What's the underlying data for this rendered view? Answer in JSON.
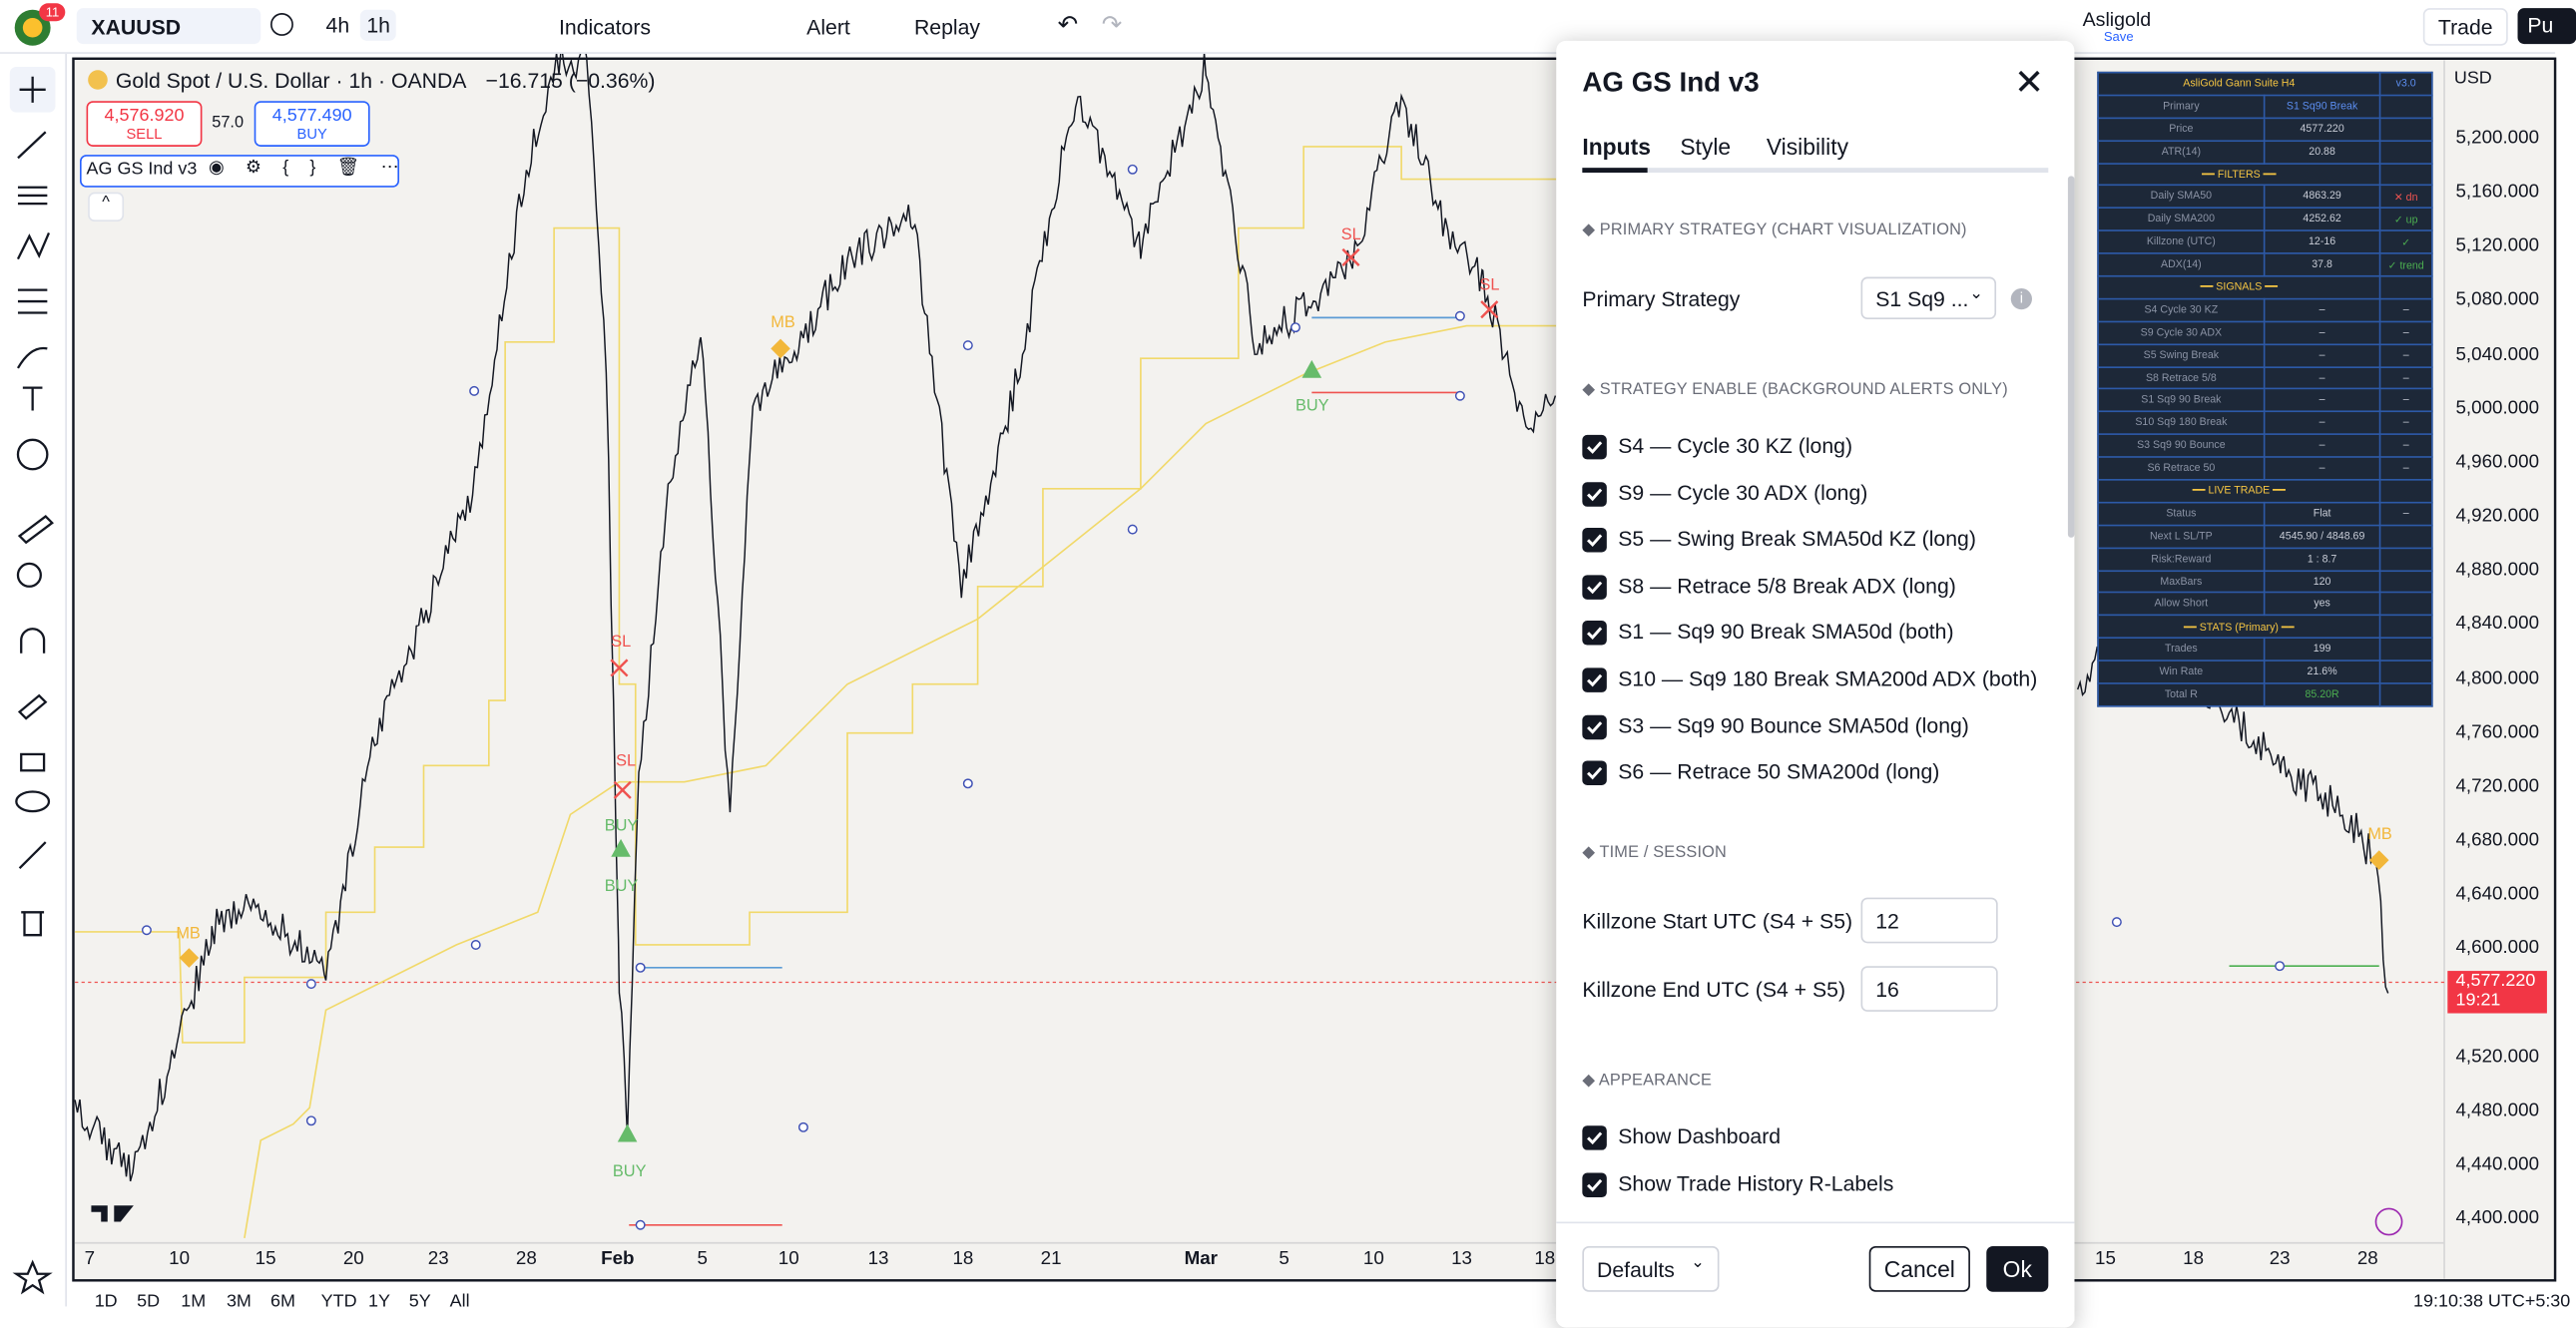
{
  "toolbar": {
    "notifications": "11",
    "symbol": "XAUUSD",
    "intervals": [
      "4h",
      "1h"
    ],
    "indicators": "Indicators",
    "alert": "Alert",
    "replay": "Replay",
    "account": "Asligold",
    "save": "Save",
    "trade": "Trade",
    "publish": "Pu"
  },
  "legend": {
    "title": "Gold Spot / U.S. Dollar · 1h · OANDA",
    "change": "−16.715 (−0.36%)",
    "sell_price": "4,576.920",
    "sell": "SELL",
    "spread": "57.0",
    "buy_price": "4,577.490",
    "buy": "BUY",
    "indicator": "AG GS Ind v3"
  },
  "chart_labels": [
    "MB",
    "MB",
    "SL",
    "SL",
    "BUY",
    "BUY",
    "BUY",
    "SL",
    "SL",
    "BUY",
    "MB"
  ],
  "dialog": {
    "title": "AG GS Ind v3",
    "tabs": [
      "Inputs",
      "Style",
      "Visibility"
    ],
    "primary_section": "◆ PRIMARY STRATEGY (CHART VISUALIZATION)",
    "primary_label": "Primary Strategy",
    "primary_value": "S1 Sq9 ...",
    "enable_section": "◆ STRATEGY ENABLE (BACKGROUND ALERTS ONLY)",
    "strategies": [
      "S4 — Cycle 30 KZ (long)",
      "S9 — Cycle 30 ADX (long)",
      "S5 — Swing Break SMA50d KZ (long)",
      "S8 — Retrace 5/8 Break ADX (long)",
      "S1 — Sq9 90 Break SMA50d (both)",
      "S10 — Sq9 180 Break SMA200d ADX (both)",
      "S3 — Sq9 90 Bounce SMA50d (long)",
      "S6 — Retrace 50 SMA200d (long)"
    ],
    "time_section": "◆ TIME / SESSION",
    "killzone_start_label": "Killzone Start UTC (S4 + S5)",
    "killzone_start": "12",
    "killzone_end_label": "Killzone End UTC (S4 + S5)",
    "killzone_end": "16",
    "appearance_section": "◆ APPEARANCE",
    "appearance": [
      "Show Dashboard",
      "Show Trade History R-Labels"
    ],
    "defaults": "Defaults",
    "cancel": "Cancel",
    "ok": "Ok"
  },
  "dashboard": {
    "title": "AsliGold Gann Suite H4",
    "version": "v3.0",
    "rows": [
      [
        "Primary",
        "S1 Sq90 Break"
      ],
      [
        "Price",
        "4577.220"
      ],
      [
        "ATR(14)",
        "20.88"
      ],
      [
        "━━ FILTERS ━━"
      ],
      [
        "Daily SMA50",
        "4863.29",
        "✕ dn"
      ],
      [
        "Daily SMA200",
        "4252.62",
        "✓ up"
      ],
      [
        "Killzone (UTC)",
        "12-16",
        "✓"
      ],
      [
        "ADX(14)",
        "37.8",
        "✓ trend"
      ],
      [
        "━━ SIGNALS ━━"
      ],
      [
        "S4 Cycle 30 KZ",
        "–",
        "–"
      ],
      [
        "S9 Cycle 30 ADX",
        "–",
        "–"
      ],
      [
        "S5 Swing Break",
        "–",
        "–"
      ],
      [
        "S8 Retrace 5/8",
        "–",
        "–"
      ],
      [
        "S1 Sq9 90 Break",
        "–",
        "–"
      ],
      [
        "S10 Sq9 180 Break",
        "–",
        "–"
      ],
      [
        "S3 Sq9 90 Bounce",
        "–",
        "–"
      ],
      [
        "S6 Retrace 50",
        "–",
        "–"
      ],
      [
        "━━ LIVE TRADE ━━"
      ],
      [
        "Status",
        "Flat",
        "–"
      ],
      [
        "Next L SL/TP",
        "4545.90 / 4848.69"
      ],
      [
        "Risk:Reward",
        "1 : 8.7"
      ],
      [
        "MaxBars",
        "120"
      ],
      [
        "Allow Short",
        "yes"
      ],
      [
        "━━ STATS (Primary) ━━"
      ],
      [
        "Trades",
        "199"
      ],
      [
        "Win Rate",
        "21.6%"
      ],
      [
        "Total R",
        "85.20R"
      ]
    ]
  },
  "price_axis": {
    "currency": "USD",
    "labels": [
      "5,200.000",
      "5,160.000",
      "5,120.000",
      "5,080.000",
      "5,040.000",
      "5,000.000",
      "4,960.000",
      "4,920.000",
      "4,880.000",
      "4,840.000",
      "4,800.000",
      "4,760.000",
      "4,720.000",
      "4,680.000",
      "4,640.000",
      "4,600.000",
      "4,520.000",
      "4,480.000",
      "4,440.000",
      "4,400.000"
    ],
    "last_price": "4,577.220",
    "countdown": "19:21"
  },
  "time_axis": {
    "labels": [
      "7",
      "10",
      "15",
      "20",
      "23",
      "28",
      "Feb",
      "5",
      "10",
      "13",
      "18",
      "21",
      "Mar",
      "5",
      "10",
      "13",
      "18",
      "15",
      "18",
      "23",
      "28"
    ]
  },
  "bottom_bar": {
    "ranges": [
      "1D",
      "5D",
      "1M",
      "3M",
      "6M",
      "YTD",
      "1Y",
      "5Y",
      "All"
    ],
    "clock": "19:10:38 UTC+5:30"
  }
}
